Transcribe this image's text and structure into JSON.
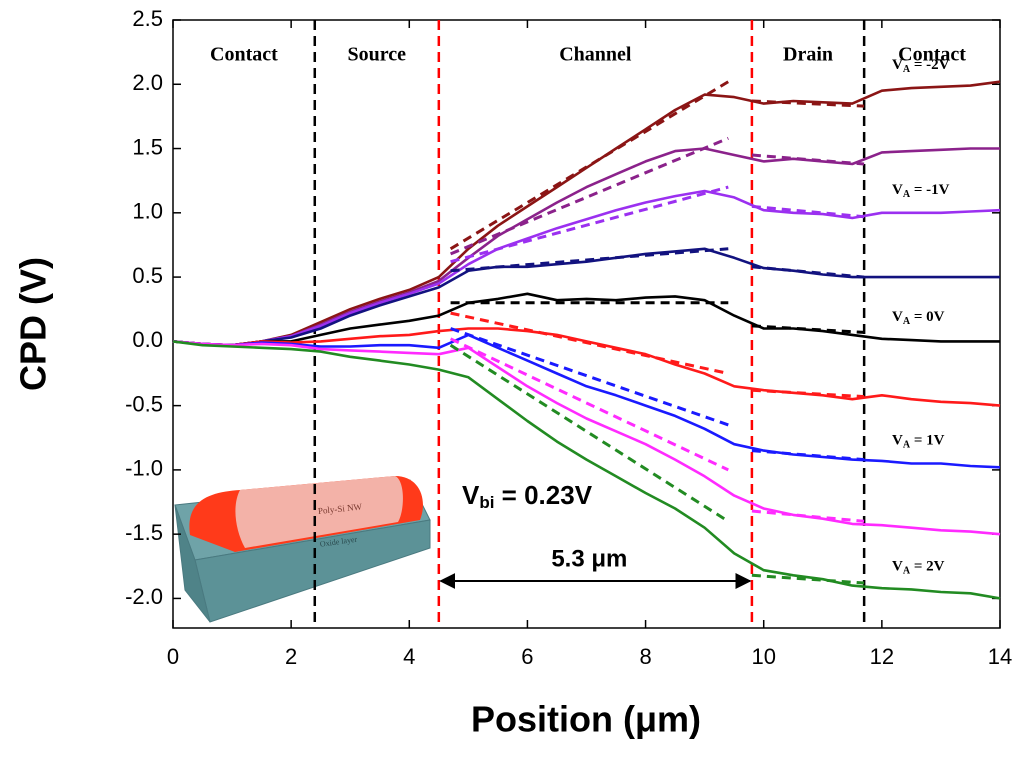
{
  "chart_data": {
    "type": "line",
    "x_label": "Position (μm)",
    "y_label": "CPD (V)",
    "xlim": [
      0,
      14
    ],
    "ylim": [
      -2.23,
      2.5
    ],
    "xticks": [
      0,
      2,
      4,
      6,
      8,
      10,
      12,
      14
    ],
    "yticks": [
      {
        "value": 2.5,
        "label": "2.5"
      },
      {
        "value": 2,
        "label": "2.0"
      },
      {
        "value": 1.5,
        "label": "1.5"
      },
      {
        "value": 1,
        "label": "1.0"
      },
      {
        "value": 0.5,
        "label": "0.5"
      },
      {
        "value": 0,
        "label": "0.0"
      },
      {
        "value": -0.5,
        "label": "-0.5"
      },
      {
        "value": -1,
        "label": "-1.0"
      },
      {
        "value": -1.5,
        "label": "-1.5"
      },
      {
        "value": -2,
        "label": "-2.0"
      }
    ],
    "x": [
      0,
      0.5,
      1,
      1.5,
      2,
      2.5,
      3,
      3.5,
      4,
      4.5,
      5,
      5.5,
      6,
      6.5,
      7,
      7.5,
      8,
      8.5,
      9,
      9.5,
      10,
      10.5,
      11,
      11.5,
      12,
      12.5,
      13,
      13.5,
      14
    ],
    "fit_x": [
      4.7,
      9.4,
      9.5,
      9.8,
      11.7
    ],
    "regions": [
      {
        "label": "Contact",
        "x": 1.2
      },
      {
        "label": "Source",
        "x": 3.45
      },
      {
        "label": "Channel",
        "x": 7.15
      },
      {
        "label": "Drain",
        "x": 10.75
      },
      {
        "label": "Contact",
        "x": 12.85
      }
    ],
    "boundaries": [
      {
        "x": 2.4,
        "color": "#000000"
      },
      {
        "x": 4.5,
        "color": "#ff0000"
      },
      {
        "x": 9.8,
        "color": "#ff0000"
      },
      {
        "x": 11.7,
        "color": "#000000"
      }
    ],
    "vbi_label": [
      "V",
      "bi",
      " = 0.23V"
    ],
    "width_label": "5.3 μm",
    "inset_labels": [
      "Poly-Si NW",
      "Oxide layer"
    ],
    "series": [
      {
        "label": [
          "V",
          "A",
          " = -2V"
        ],
        "color": "#8b1515",
        "values": [
          0,
          -0.02,
          -0.03,
          0,
          0.05,
          0.15,
          0.25,
          0.33,
          0.4,
          0.5,
          0.72,
          0.9,
          1.05,
          1.2,
          1.35,
          1.5,
          1.65,
          1.8,
          1.92,
          1.9,
          1.85,
          1.87,
          1.86,
          1.85,
          1.95,
          1.97,
          1.98,
          1.99,
          2.02
        ],
        "fit": [
          0.72,
          2.02,
          null,
          1.87,
          1.83
        ]
      },
      {
        "color": "#8b228b",
        "values": [
          0,
          -0.02,
          -0.03,
          0,
          0.04,
          0.13,
          0.23,
          0.31,
          0.38,
          0.47,
          0.65,
          0.82,
          0.95,
          1.08,
          1.2,
          1.3,
          1.4,
          1.48,
          1.5,
          1.45,
          1.4,
          1.42,
          1.4,
          1.38,
          1.47,
          1.48,
          1.49,
          1.5,
          1.5
        ],
        "fit": [
          0.68,
          1.58,
          null,
          1.45,
          1.38
        ]
      },
      {
        "label": [
          "V",
          "A",
          " = -1V"
        ],
        "color": "#9b30f0",
        "values": [
          0,
          -0.02,
          -0.03,
          0,
          0.04,
          0.12,
          0.22,
          0.3,
          0.37,
          0.45,
          0.6,
          0.72,
          0.8,
          0.88,
          0.95,
          1.02,
          1.08,
          1.13,
          1.17,
          1.12,
          1.02,
          1.0,
          0.99,
          0.96,
          1.0,
          1.0,
          1.0,
          1.01,
          1.02
        ],
        "fit": [
          0.62,
          1.2,
          null,
          1.05,
          0.97
        ]
      },
      {
        "color": "#12127f",
        "values": [
          0,
          -0.02,
          -0.03,
          0,
          0.03,
          0.1,
          0.2,
          0.28,
          0.35,
          0.42,
          0.55,
          0.58,
          0.58,
          0.6,
          0.62,
          0.65,
          0.68,
          0.7,
          0.72,
          0.65,
          0.57,
          0.55,
          0.52,
          0.5,
          0.5,
          0.5,
          0.5,
          0.5,
          0.5
        ],
        "fit": [
          0.55,
          0.72,
          null,
          0.58,
          0.5
        ]
      },
      {
        "label": [
          "V",
          "A",
          " = 0V"
        ],
        "color": "#000000",
        "values": [
          0,
          -0.02,
          -0.03,
          0,
          0,
          0.05,
          0.1,
          0.13,
          0.16,
          0.2,
          0.3,
          0.33,
          0.37,
          0.32,
          0.33,
          0.32,
          0.34,
          0.35,
          0.32,
          0.2,
          0.1,
          0.1,
          0.08,
          0.05,
          0.02,
          0.01,
          0,
          0,
          0
        ],
        "fit": [
          0.3,
          0.3,
          null,
          0.12,
          0.07
        ]
      },
      {
        "color": "#ff1a1a",
        "values": [
          0,
          -0.02,
          -0.03,
          0,
          -0.01,
          0,
          0.02,
          0.04,
          0.05,
          0.08,
          0.1,
          0.1,
          0.08,
          0.05,
          0,
          -0.05,
          -0.1,
          -0.18,
          -0.25,
          -0.35,
          -0.38,
          -0.4,
          -0.42,
          -0.45,
          -0.42,
          -0.45,
          -0.47,
          -0.48,
          -0.5
        ],
        "fit": [
          0.22,
          -0.25,
          null,
          -0.38,
          -0.43
        ]
      },
      {
        "label": [
          "V",
          "A",
          " = 1V"
        ],
        "color": "#1a1aff",
        "values": [
          0,
          -0.02,
          -0.03,
          -0.01,
          -0.02,
          -0.04,
          -0.04,
          -0.03,
          -0.03,
          -0.05,
          0.05,
          -0.05,
          -0.15,
          -0.25,
          -0.35,
          -0.42,
          -0.5,
          -0.58,
          -0.68,
          -0.8,
          -0.85,
          -0.88,
          -0.9,
          -0.92,
          -0.93,
          -0.95,
          -0.95,
          -0.97,
          -0.98
        ],
        "fit": [
          0.1,
          -0.65,
          null,
          -0.85,
          -0.92
        ]
      },
      {
        "color": "#ff2bff",
        "values": [
          0,
          -0.02,
          -0.03,
          -0.02,
          -0.03,
          -0.06,
          -0.07,
          -0.08,
          -0.09,
          -0.1,
          -0.05,
          -0.2,
          -0.35,
          -0.48,
          -0.6,
          -0.7,
          -0.8,
          -0.92,
          -1.05,
          -1.2,
          -1.3,
          -1.35,
          -1.38,
          -1.42,
          -1.43,
          -1.45,
          -1.47,
          -1.48,
          -1.5
        ],
        "fit": [
          0.02,
          -1.0,
          null,
          -1.32,
          -1.4
        ]
      },
      {
        "label": [
          "V",
          "A",
          " = 2V"
        ],
        "color": "#228b22",
        "values": [
          0,
          -0.03,
          -0.04,
          -0.05,
          -0.06,
          -0.08,
          -0.12,
          -0.15,
          -0.18,
          -0.22,
          -0.28,
          -0.45,
          -0.62,
          -0.78,
          -0.92,
          -1.05,
          -1.18,
          -1.3,
          -1.45,
          -1.65,
          -1.78,
          -1.82,
          -1.85,
          -1.9,
          -1.92,
          -1.93,
          -1.95,
          -1.96,
          -2.0
        ],
        "fit": [
          -0.03,
          -1.4,
          null,
          -1.82,
          -1.88
        ]
      }
    ]
  }
}
